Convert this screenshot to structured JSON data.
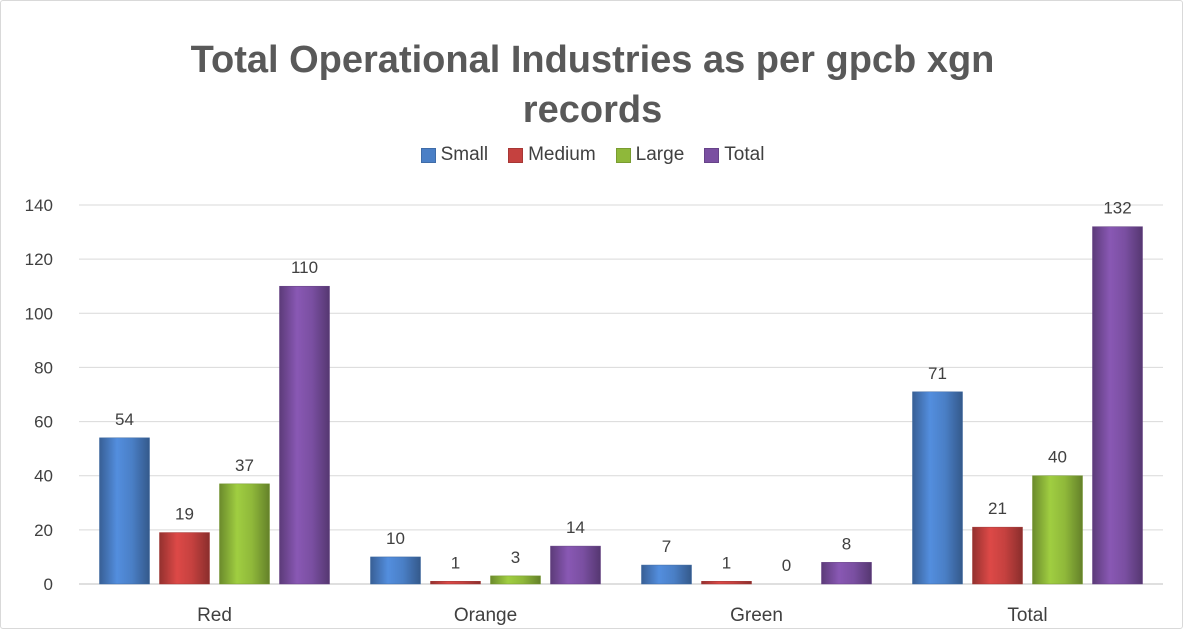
{
  "chart_data": {
    "type": "bar",
    "title": "Total Operational Industries as per gpcb xgn records",
    "title_lines": [
      "Total Operational  Industries as per gpcb xgn",
      "records"
    ],
    "xlabel": "",
    "ylabel": "",
    "categories": [
      "Red",
      "Orange",
      "Green",
      "Total"
    ],
    "series": [
      {
        "name": "Small",
        "color": "#4a7fc6",
        "values": [
          54,
          10,
          7,
          71
        ]
      },
      {
        "name": "Medium",
        "color": "#c5413f",
        "values": [
          19,
          1,
          1,
          21
        ]
      },
      {
        "name": "Large",
        "color": "#8fb83a",
        "values": [
          37,
          3,
          0,
          40
        ]
      },
      {
        "name": "Total",
        "color": "#7a4fa1",
        "values": [
          110,
          14,
          8,
          132
        ]
      }
    ],
    "ylim": [
      0,
      140
    ],
    "yticks": [
      0,
      20,
      40,
      60,
      80,
      100,
      120,
      140
    ],
    "grid": true,
    "legend_position": "top",
    "data_labels": true
  }
}
